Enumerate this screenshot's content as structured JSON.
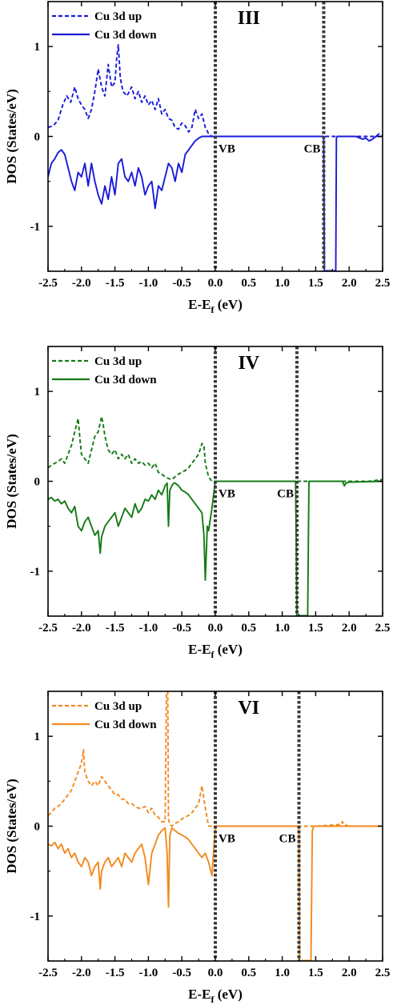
{
  "chart_data": [
    {
      "type": "line",
      "panel_label": "III",
      "color": "#1a1adc",
      "xlabel": "E-E",
      "xlabel_sub": "f",
      "xlabel_unit": "(eV)",
      "ylabel": "DOS (States/eV)",
      "xlim": [
        -2.5,
        2.5
      ],
      "ylim": [
        -1.5,
        1.5
      ],
      "x_ticks": [
        "-2.5",
        "-2.0",
        "-1.5",
        "-1.0",
        "-0.5",
        "0.0",
        "0.5",
        "1.0",
        "1.5",
        "2.0",
        "2.5"
      ],
      "y_ticks": [
        "1",
        "0",
        "-1"
      ],
      "vlines": [
        {
          "x": 0.0,
          "label": "VB"
        },
        {
          "x": 1.62,
          "label": "CB"
        }
      ],
      "series": [
        {
          "name": "Cu 3d up",
          "style": "dashed",
          "x": [
            -2.5,
            -2.42,
            -2.35,
            -2.28,
            -2.22,
            -2.16,
            -2.1,
            -2.05,
            -2.0,
            -1.95,
            -1.9,
            -1.85,
            -1.8,
            -1.75,
            -1.7,
            -1.65,
            -1.6,
            -1.55,
            -1.5,
            -1.47,
            -1.45,
            -1.42,
            -1.38,
            -1.32,
            -1.25,
            -1.2,
            -1.15,
            -1.1,
            -1.05,
            -1.0,
            -0.95,
            -0.9,
            -0.85,
            -0.8,
            -0.75,
            -0.7,
            -0.65,
            -0.6,
            -0.55,
            -0.5,
            -0.45,
            -0.4,
            -0.35,
            -0.3,
            -0.25,
            -0.2,
            -0.15,
            -0.1,
            -0.05,
            0.0,
            0.5,
            1.0,
            1.5,
            1.6,
            1.8,
            2.0,
            2.2,
            2.3,
            2.4,
            2.45,
            2.5
          ],
          "y": [
            0.1,
            0.12,
            0.18,
            0.35,
            0.45,
            0.38,
            0.55,
            0.42,
            0.35,
            0.3,
            0.2,
            0.3,
            0.5,
            0.75,
            0.55,
            0.45,
            0.8,
            0.55,
            0.6,
            0.9,
            1.02,
            0.65,
            0.5,
            0.45,
            0.55,
            0.42,
            0.5,
            0.38,
            0.45,
            0.35,
            0.4,
            0.3,
            0.42,
            0.25,
            0.3,
            0.2,
            0.18,
            0.1,
            0.08,
            0.15,
            0.12,
            0.05,
            0.1,
            0.3,
            0.2,
            0.25,
            0.1,
            0.03,
            0.0,
            0.0,
            0.0,
            0.0,
            0.0,
            0.0,
            0.0,
            0.0,
            0.0,
            0.0,
            0.0,
            0.03,
            0.02
          ]
        },
        {
          "name": "Cu 3d down",
          "style": "solid",
          "x": [
            -2.5,
            -2.45,
            -2.4,
            -2.35,
            -2.3,
            -2.25,
            -2.2,
            -2.15,
            -2.1,
            -2.05,
            -2.0,
            -1.95,
            -1.9,
            -1.85,
            -1.8,
            -1.75,
            -1.7,
            -1.65,
            -1.6,
            -1.55,
            -1.5,
            -1.45,
            -1.4,
            -1.35,
            -1.3,
            -1.25,
            -1.2,
            -1.15,
            -1.1,
            -1.05,
            -1.0,
            -0.95,
            -0.9,
            -0.85,
            -0.8,
            -0.75,
            -0.7,
            -0.65,
            -0.6,
            -0.55,
            -0.5,
            -0.45,
            -0.4,
            -0.35,
            -0.3,
            -0.25,
            -0.2,
            -0.1,
            0.0,
            0.5,
            1.0,
            1.5,
            1.6,
            1.62,
            1.63,
            1.64,
            1.66,
            1.7,
            1.75,
            1.79,
            1.8,
            1.81,
            1.82,
            1.85,
            2.0,
            2.1,
            2.2,
            2.25,
            2.3,
            2.35,
            2.4,
            2.5
          ],
          "y": [
            -0.45,
            -0.3,
            -0.25,
            -0.18,
            -0.15,
            -0.2,
            -0.35,
            -0.5,
            -0.6,
            -0.4,
            -0.45,
            -0.3,
            -0.55,
            -0.3,
            -0.5,
            -0.65,
            -0.75,
            -0.55,
            -0.7,
            -0.45,
            -0.65,
            -0.3,
            -0.25,
            -0.45,
            -0.5,
            -0.4,
            -0.55,
            -0.35,
            -0.45,
            -0.65,
            -0.55,
            -0.5,
            -0.8,
            -0.55,
            -0.6,
            -0.45,
            -0.3,
            -0.35,
            -0.5,
            -0.3,
            -0.4,
            -0.2,
            -0.15,
            -0.1,
            -0.05,
            -0.02,
            0.0,
            0.0,
            0.0,
            0.0,
            0.0,
            0.0,
            0.0,
            0.0,
            -1.5,
            -1.5,
            -1.5,
            -1.5,
            -1.5,
            -1.5,
            -1.5,
            -0.02,
            0.0,
            0.0,
            0.0,
            0.0,
            -0.03,
            -0.02,
            -0.05,
            -0.03,
            0.0,
            0.0
          ]
        }
      ]
    },
    {
      "type": "line",
      "panel_label": "IV",
      "color": "#157a15",
      "xlabel": "E-E",
      "xlabel_sub": "f",
      "xlabel_unit": "(eV)",
      "ylabel": "DOS (States/eV)",
      "xlim": [
        -2.5,
        2.5
      ],
      "ylim": [
        -1.5,
        1.5
      ],
      "x_ticks": [
        "-2.5",
        "-2.0",
        "-1.5",
        "-1.0",
        "-0.5",
        "0.0",
        "0.5",
        "1.0",
        "1.5",
        "2.0",
        "2.5"
      ],
      "y_ticks": [
        "1",
        "0",
        "-1"
      ],
      "vlines": [
        {
          "x": 0.0,
          "label": "VB"
        },
        {
          "x": 1.22,
          "label": "CB"
        }
      ],
      "series": [
        {
          "name": "Cu 3d up",
          "style": "dashed",
          "x": [
            -2.5,
            -2.45,
            -2.4,
            -2.35,
            -2.3,
            -2.25,
            -2.2,
            -2.15,
            -2.1,
            -2.05,
            -2.02,
            -2.0,
            -1.95,
            -1.9,
            -1.85,
            -1.8,
            -1.75,
            -1.7,
            -1.68,
            -1.65,
            -1.6,
            -1.55,
            -1.5,
            -1.45,
            -1.4,
            -1.35,
            -1.3,
            -1.25,
            -1.2,
            -1.15,
            -1.1,
            -1.05,
            -1.0,
            -0.95,
            -0.9,
            -0.85,
            -0.8,
            -0.75,
            -0.7,
            -0.65,
            -0.6,
            -0.55,
            -0.5,
            -0.45,
            -0.4,
            -0.35,
            -0.3,
            -0.25,
            -0.2,
            -0.17,
            -0.15,
            -0.1,
            -0.05,
            0.0,
            0.5,
            1.0,
            1.2,
            1.5,
            2.0,
            2.3,
            2.5
          ],
          "y": [
            0.15,
            0.18,
            0.2,
            0.22,
            0.25,
            0.2,
            0.3,
            0.4,
            0.55,
            0.7,
            0.45,
            0.3,
            0.25,
            0.2,
            0.35,
            0.5,
            0.55,
            0.72,
            0.65,
            0.5,
            0.35,
            0.3,
            0.35,
            0.25,
            0.3,
            0.25,
            0.3,
            0.2,
            0.25,
            0.2,
            0.22,
            0.18,
            0.2,
            0.15,
            0.2,
            0.1,
            0.08,
            0.05,
            0.03,
            0.02,
            0.05,
            0.08,
            0.1,
            0.12,
            0.15,
            0.2,
            0.25,
            0.3,
            0.42,
            0.4,
            0.2,
            0.05,
            0.0,
            0.0,
            0.0,
            0.0,
            0.0,
            0.0,
            0.0,
            0.0,
            0.02
          ]
        },
        {
          "name": "Cu 3d down",
          "style": "solid",
          "x": [
            -2.5,
            -2.45,
            -2.4,
            -2.35,
            -2.3,
            -2.25,
            -2.2,
            -2.15,
            -2.1,
            -2.05,
            -2.0,
            -1.95,
            -1.9,
            -1.85,
            -1.8,
            -1.75,
            -1.72,
            -1.7,
            -1.65,
            -1.6,
            -1.55,
            -1.5,
            -1.45,
            -1.4,
            -1.35,
            -1.3,
            -1.25,
            -1.2,
            -1.15,
            -1.1,
            -1.05,
            -1.0,
            -0.95,
            -0.9,
            -0.85,
            -0.8,
            -0.75,
            -0.72,
            -0.7,
            -0.68,
            -0.65,
            -0.62,
            -0.6,
            -0.55,
            -0.5,
            -0.45,
            -0.4,
            -0.35,
            -0.3,
            -0.25,
            -0.2,
            -0.17,
            -0.15,
            -0.12,
            -0.1,
            -0.05,
            0.0,
            0.5,
            1.0,
            1.2,
            1.22,
            1.23,
            1.24,
            1.26,
            1.3,
            1.35,
            1.38,
            1.4,
            1.42,
            1.45,
            1.5,
            1.9,
            1.93,
            1.95,
            2.0,
            2.5
          ],
          "y": [
            -0.2,
            -0.18,
            -0.22,
            -0.2,
            -0.25,
            -0.22,
            -0.3,
            -0.35,
            -0.28,
            -0.5,
            -0.55,
            -0.45,
            -0.4,
            -0.5,
            -0.6,
            -0.55,
            -0.8,
            -0.62,
            -0.5,
            -0.45,
            -0.4,
            -0.35,
            -0.5,
            -0.4,
            -0.3,
            -0.35,
            -0.4,
            -0.25,
            -0.35,
            -0.3,
            -0.2,
            -0.22,
            -0.15,
            -0.2,
            -0.1,
            -0.15,
            -0.05,
            -0.02,
            -0.5,
            -0.1,
            -0.05,
            -0.02,
            -0.02,
            -0.05,
            -0.1,
            -0.12,
            -0.15,
            -0.2,
            -0.25,
            -0.3,
            -0.35,
            -0.6,
            -1.1,
            -0.5,
            -0.55,
            -0.3,
            0.0,
            0.0,
            0.0,
            0.0,
            -1.5,
            -1.5,
            -1.5,
            -1.5,
            -1.5,
            -1.5,
            -1.5,
            0.0,
            0.0,
            0.0,
            0.0,
            0.0,
            -0.05,
            -0.02,
            -0.01,
            0.0
          ]
        }
      ]
    },
    {
      "type": "line",
      "panel_label": "VI",
      "color": "#f28a1e",
      "xlabel": "E-E",
      "xlabel_sub": "f",
      "xlabel_unit": "(eV)",
      "ylabel": "DOS (States/eV)",
      "xlim": [
        -2.5,
        2.5
      ],
      "ylim": [
        -1.5,
        1.5
      ],
      "x_ticks": [
        "-2.5",
        "-2.0",
        "-1.5",
        "-1.0",
        "-0.5",
        "0.0",
        "0.5",
        "1.0",
        "1.5",
        "2.0",
        "2.5"
      ],
      "y_ticks": [
        "1",
        "0",
        "-1"
      ],
      "vlines": [
        {
          "x": 0.0,
          "label": "VB"
        },
        {
          "x": 1.25,
          "label": "CB"
        }
      ],
      "series": [
        {
          "name": "Cu 3d up",
          "style": "dashed",
          "x": [
            -2.5,
            -2.45,
            -2.4,
            -2.35,
            -2.3,
            -2.25,
            -2.2,
            -2.15,
            -2.1,
            -2.05,
            -2.0,
            -1.97,
            -1.95,
            -1.9,
            -1.85,
            -1.8,
            -1.75,
            -1.7,
            -1.65,
            -1.6,
            -1.55,
            -1.5,
            -1.45,
            -1.4,
            -1.35,
            -1.3,
            -1.25,
            -1.2,
            -1.15,
            -1.1,
            -1.05,
            -1.0,
            -0.95,
            -0.9,
            -0.85,
            -0.8,
            -0.75,
            -0.73,
            -0.72,
            -0.71,
            -0.7,
            -0.68,
            -0.65,
            -0.6,
            -0.55,
            -0.5,
            -0.45,
            -0.4,
            -0.35,
            -0.3,
            -0.25,
            -0.2,
            -0.15,
            -0.1,
            -0.05,
            0.0,
            0.5,
            1.0,
            1.5,
            1.88,
            1.9,
            1.92,
            2.0,
            2.5
          ],
          "y": [
            0.12,
            0.15,
            0.2,
            0.22,
            0.25,
            0.3,
            0.35,
            0.4,
            0.5,
            0.6,
            0.7,
            0.85,
            0.6,
            0.5,
            0.45,
            0.5,
            0.45,
            0.55,
            0.5,
            0.45,
            0.4,
            0.35,
            0.35,
            0.3,
            0.3,
            0.25,
            0.25,
            0.22,
            0.2,
            0.2,
            0.22,
            0.15,
            0.2,
            0.12,
            0.1,
            0.05,
            0.05,
            1.5,
            1.5,
            1.5,
            0.08,
            0.02,
            0.0,
            0.03,
            0.05,
            0.08,
            0.1,
            0.12,
            0.15,
            0.2,
            0.25,
            0.45,
            0.2,
            0.0,
            0.0,
            0.0,
            0.0,
            0.0,
            0.0,
            0.02,
            0.05,
            0.02,
            0.0,
            0.0
          ]
        },
        {
          "name": "Cu 3d down",
          "style": "solid",
          "x": [
            -2.5,
            -2.45,
            -2.4,
            -2.35,
            -2.3,
            -2.25,
            -2.2,
            -2.15,
            -2.1,
            -2.05,
            -2.0,
            -1.95,
            -1.9,
            -1.85,
            -1.8,
            -1.75,
            -1.72,
            -1.7,
            -1.65,
            -1.6,
            -1.55,
            -1.5,
            -1.45,
            -1.4,
            -1.35,
            -1.3,
            -1.25,
            -1.2,
            -1.15,
            -1.1,
            -1.05,
            -1.0,
            -0.95,
            -0.9,
            -0.85,
            -0.8,
            -0.75,
            -0.72,
            -0.7,
            -0.68,
            -0.65,
            -0.6,
            -0.55,
            -0.5,
            -0.45,
            -0.4,
            -0.35,
            -0.3,
            -0.25,
            -0.2,
            -0.15,
            -0.1,
            -0.05,
            0.0,
            0.5,
            1.0,
            1.25,
            1.26,
            1.28,
            1.3,
            1.35,
            1.4,
            1.43,
            1.45,
            1.47,
            1.5,
            2.0,
            2.5
          ],
          "y": [
            -0.2,
            -0.22,
            -0.18,
            -0.25,
            -0.2,
            -0.3,
            -0.25,
            -0.35,
            -0.3,
            -0.4,
            -0.45,
            -0.35,
            -0.4,
            -0.55,
            -0.45,
            -0.4,
            -0.7,
            -0.5,
            -0.4,
            -0.35,
            -0.45,
            -0.4,
            -0.35,
            -0.45,
            -0.3,
            -0.35,
            -0.4,
            -0.3,
            -0.25,
            -0.2,
            -0.35,
            -0.65,
            -0.3,
            -0.2,
            -0.1,
            -0.05,
            -0.02,
            -0.3,
            -0.9,
            -0.1,
            -0.02,
            -0.05,
            -0.08,
            -0.1,
            -0.12,
            -0.15,
            -0.2,
            -0.25,
            -0.3,
            -0.35,
            -0.3,
            -0.4,
            -0.55,
            0.0,
            0.0,
            0.0,
            0.0,
            -1.5,
            -1.5,
            -1.5,
            -1.5,
            -1.5,
            -1.5,
            -0.05,
            0.0,
            0.0,
            0.0,
            0.0
          ]
        }
      ]
    }
  ]
}
